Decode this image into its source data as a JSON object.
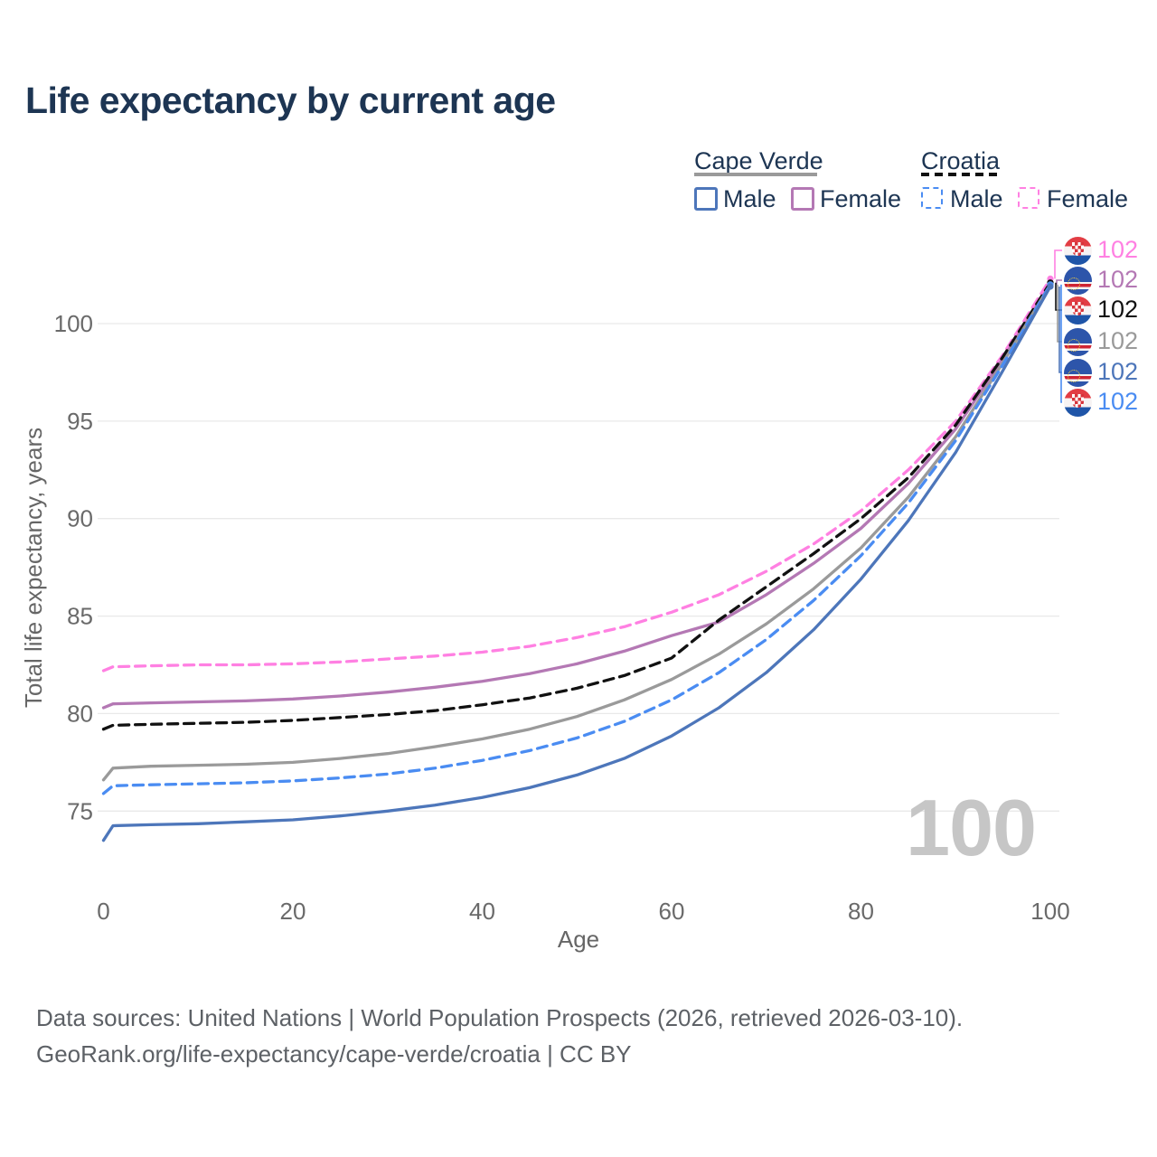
{
  "title": "Life expectancy by current age",
  "watermark": "100",
  "footer": {
    "line1": "Data sources: United Nations | World Population Prospects (2026, retrieved 2026-03-10).",
    "line2": "GeoRank.org/life-expectancy/cape-verde/croatia | CC BY"
  },
  "legend": {
    "groups": [
      {
        "country": "Cape Verde",
        "line_style": "solid",
        "underline_color": "#9a9a9a",
        "items": [
          {
            "label": "Male",
            "color": "#4d76ba",
            "dashed": false
          },
          {
            "label": "Female",
            "color": "#b478b4",
            "dashed": false
          }
        ]
      },
      {
        "country": "Croatia",
        "line_style": "dashed",
        "underline_color": "#111111",
        "items": [
          {
            "label": "Male",
            "color": "#4a8cf2",
            "dashed": true
          },
          {
            "label": "Female",
            "color": "#ff80e2",
            "dashed": true
          }
        ]
      }
    ]
  },
  "chart_data": {
    "type": "line",
    "title": "Life expectancy by current age",
    "xlabel": "Age",
    "ylabel": "Total life expectancy, years",
    "xticks": [
      0,
      20,
      40,
      60,
      80,
      100
    ],
    "yticks": [
      75,
      80,
      85,
      90,
      95,
      100
    ],
    "xlim": [
      0,
      100
    ],
    "ylim": [
      73,
      103
    ],
    "grid": "horizontal",
    "legend_position": "top-right",
    "x": [
      0,
      1,
      5,
      10,
      15,
      20,
      25,
      30,
      35,
      40,
      45,
      50,
      55,
      60,
      65,
      70,
      75,
      80,
      85,
      90,
      95,
      100
    ],
    "series": [
      {
        "id": "hr-female",
        "name": "Croatia Female",
        "country": "Croatia",
        "sex": "female",
        "color": "#ff80e2",
        "dash": true,
        "values": [
          82.2,
          82.4,
          82.45,
          82.5,
          82.5,
          82.55,
          82.65,
          82.8,
          82.95,
          83.15,
          83.45,
          83.9,
          84.45,
          85.2,
          86.1,
          87.3,
          88.7,
          90.4,
          92.5,
          95.0,
          98.4,
          102.3
        ]
      },
      {
        "id": "cv-female",
        "name": "Cape Verde Female",
        "country": "Cape Verde",
        "sex": "female",
        "color": "#b478b4",
        "dash": false,
        "values": [
          80.3,
          80.5,
          80.55,
          80.6,
          80.65,
          80.75,
          80.9,
          81.1,
          81.35,
          81.65,
          82.05,
          82.55,
          83.2,
          84.0,
          84.7,
          86.1,
          87.7,
          89.5,
          91.8,
          94.6,
          98.2,
          102.0
        ]
      },
      {
        "id": "hr-all",
        "name": "Croatia",
        "country": "Croatia",
        "sex": "all",
        "color": "#111111",
        "dash": true,
        "values": [
          79.2,
          79.4,
          79.45,
          79.5,
          79.55,
          79.65,
          79.8,
          79.95,
          80.15,
          80.45,
          80.8,
          81.3,
          81.95,
          82.85,
          84.8,
          86.5,
          88.2,
          90.0,
          92.1,
          94.8,
          98.3,
          102.1
        ]
      },
      {
        "id": "cv-all",
        "name": "Cape Verde",
        "country": "Cape Verde",
        "sex": "all",
        "color": "#9a9a9a",
        "dash": false,
        "values": [
          76.6,
          77.2,
          77.3,
          77.35,
          77.4,
          77.5,
          77.7,
          77.95,
          78.3,
          78.7,
          79.2,
          79.85,
          80.7,
          81.75,
          83.05,
          84.6,
          86.4,
          88.5,
          91.1,
          94.2,
          98.0,
          102.0
        ]
      },
      {
        "id": "hr-male",
        "name": "Croatia Male",
        "country": "Croatia",
        "sex": "male",
        "color": "#4a8cf2",
        "dash": true,
        "values": [
          75.9,
          76.3,
          76.35,
          76.4,
          76.45,
          76.55,
          76.7,
          76.9,
          77.2,
          77.6,
          78.1,
          78.75,
          79.6,
          80.7,
          82.1,
          83.8,
          85.8,
          88.1,
          90.8,
          94.0,
          97.9,
          102.0
        ]
      },
      {
        "id": "cv-male",
        "name": "Cape Verde Male",
        "country": "Cape Verde",
        "sex": "male",
        "color": "#4d76ba",
        "dash": false,
        "values": [
          73.5,
          74.25,
          74.3,
          74.35,
          74.45,
          74.55,
          74.75,
          75.0,
          75.3,
          75.7,
          76.2,
          76.85,
          77.7,
          78.85,
          80.3,
          82.1,
          84.3,
          86.9,
          89.9,
          93.4,
          97.6,
          101.9
        ]
      }
    ],
    "end_labels": [
      {
        "value": "102",
        "series": "hr-female",
        "name": "Croatia Female",
        "color": "#ff80e2",
        "flag": "croatia"
      },
      {
        "value": "102",
        "series": "cv-female",
        "name": "Cape Verde Female",
        "color": "#b478b4",
        "flag": "cape-verde"
      },
      {
        "value": "102",
        "series": "hr-all",
        "name": "Croatia",
        "color": "#111111",
        "flag": "croatia"
      },
      {
        "value": "102",
        "series": "cv-all",
        "name": "Cape Verde",
        "color": "#9a9a9a",
        "flag": "cape-verde"
      },
      {
        "value": "102",
        "series": "cv-male",
        "name": "Cape Verde Male",
        "color": "#4d76ba",
        "flag": "cape-verde"
      },
      {
        "value": "102",
        "series": "hr-male",
        "name": "Croatia Male",
        "color": "#4a8cf2",
        "flag": "croatia"
      }
    ]
  }
}
